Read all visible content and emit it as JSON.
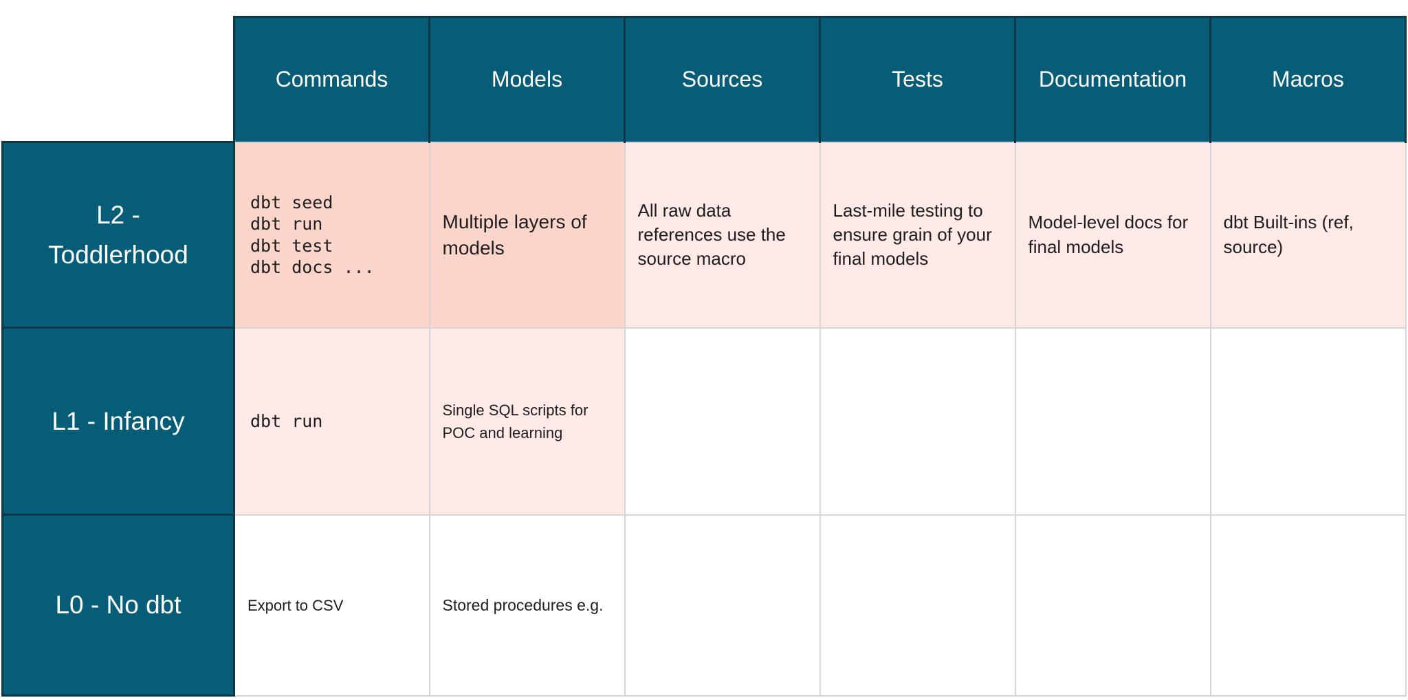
{
  "colors": {
    "teal": "#075D77",
    "teal_border": "#103744",
    "pink_strong": "#FBD4CA",
    "pink_light": "#FDE9E6",
    "cell_border": "#D6D6D6",
    "header_text": "#FFFFFF",
    "body_text": "#1E1E1E"
  },
  "chart_data": {
    "type": "table",
    "columns": [
      "",
      "Commands",
      "Models",
      "Sources",
      "Tests",
      "Documentation",
      "Macros"
    ],
    "rows": [
      [
        "L2 - Toddlerhood",
        "dbt seed\ndbt run\ndbt test\ndbt docs ...",
        "Multiple layers of models",
        "All raw data references use the source macro",
        "Last-mile testing to ensure grain of your final models",
        "Model-level docs for final models",
        "dbt Built-ins (ref, source)"
      ],
      [
        "L1 - Infancy",
        "dbt run",
        "Single SQL scripts for POC and learning",
        "",
        "",
        "",
        ""
      ],
      [
        "L0 - No dbt",
        "Export to CSV",
        "Stored procedures e.g.",
        "",
        "",
        "",
        ""
      ]
    ],
    "layout_hints": {
      "highlighted_strong_cells": [
        [
          "L2 - Toddlerhood",
          "Commands"
        ],
        [
          "L2 - Toddlerhood",
          "Models"
        ]
      ],
      "highlighted_light_cells": [
        [
          "L2 - Toddlerhood",
          "Sources"
        ],
        [
          "L2 - Toddlerhood",
          "Tests"
        ],
        [
          "L2 - Toddlerhood",
          "Documentation"
        ],
        [
          "L2 - Toddlerhood",
          "Macros"
        ],
        [
          "L1 - Infancy",
          "Commands"
        ],
        [
          "L1 - Infancy",
          "Models"
        ]
      ],
      "header_style": "dark-teal, white text",
      "grid": "light gray borders on body cells, dark borders on teal cells"
    }
  }
}
